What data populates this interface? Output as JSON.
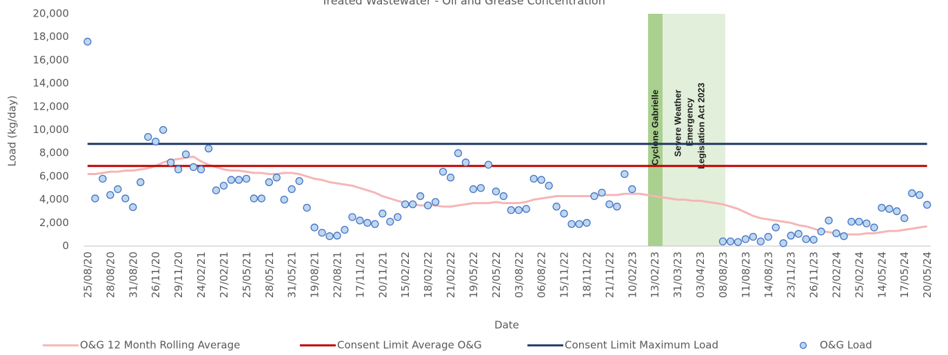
{
  "chart_data": {
    "type": "line",
    "title": "Treated Wastewater - Oil and Grease Concentration",
    "xlabel": "Date",
    "ylabel": "Load (kg/day)",
    "categories": [
      "25/08/20",
      null,
      null,
      "28/08/20",
      null,
      null,
      "31/08/20",
      null,
      null,
      "26/11/20",
      null,
      null,
      "29/11/20",
      null,
      null,
      "24/02/21",
      null,
      null,
      "27/02/21",
      null,
      null,
      "25/05/21",
      null,
      null,
      "28/05/21",
      null,
      null,
      "31/05/21",
      null,
      null,
      "19/08/21",
      null,
      null,
      "22/08/21",
      null,
      null,
      "17/11/21",
      null,
      null,
      "20/11/21",
      null,
      null,
      "15/02/22",
      null,
      null,
      "18/02/22",
      null,
      null,
      "21/02/22",
      null,
      null,
      "19/05/22",
      null,
      null,
      "22/05/22",
      null,
      null,
      "03/08/22",
      null,
      null,
      "06/08/22",
      null,
      null,
      "15/11/22",
      null,
      null,
      "18/11/22",
      null,
      null,
      "21/11/22",
      null,
      null,
      "10/02/23",
      null,
      null,
      "13/02/23",
      null,
      null,
      "31/03/23",
      null,
      null,
      "03/04/23",
      null,
      null,
      "08/08/23",
      null,
      null,
      "11/08/23",
      null,
      null,
      "14/08/23",
      null,
      null,
      "23/11/23",
      null,
      null,
      "26/11/23",
      null,
      null,
      "22/02/24",
      null,
      null,
      "25/02/24",
      null,
      null,
      "14/05/24",
      null,
      null,
      "17/05/24",
      null,
      null,
      "20/05/24"
    ],
    "ylim": [
      0,
      20000
    ],
    "yticks": [
      0,
      {
        "value": 2000,
        "label": "2,000"
      },
      {
        "value": 4000,
        "label": "4,000"
      },
      {
        "value": 6000,
        "label": "6,000"
      },
      {
        "value": 8000,
        "label": "8,000"
      },
      {
        "value": 10000,
        "label": "10,000"
      },
      {
        "value": 12000,
        "label": "12,000"
      },
      {
        "value": 14000,
        "label": "14,000"
      },
      {
        "value": 16000,
        "label": "16,000"
      },
      {
        "value": 18000,
        "label": "18,000"
      },
      {
        "value": 20000,
        "label": "20,000"
      }
    ],
    "grid": false,
    "annotations": [
      "Cyclone Gabrielle",
      "Severe Weather",
      "Emergency",
      "Legislation Act 2023"
    ],
    "series": [
      {
        "name": "O&G 12 Month Rolling Average",
        "color": "#f4b6b6",
        "mode": "line",
        "values": [
          6200,
          6200,
          6300,
          6400,
          6400,
          6500,
          6500,
          6600,
          6700,
          6900,
          7200,
          7400,
          7500,
          7600,
          7700,
          7300,
          7000,
          6800,
          6600,
          6500,
          6500,
          6400,
          6300,
          6300,
          6200,
          6200,
          6300,
          6300,
          6200,
          6000,
          5800,
          5700,
          5500,
          5400,
          5300,
          5200,
          5000,
          4800,
          4600,
          4300,
          4100,
          3900,
          3700,
          3600,
          3500,
          3500,
          3500,
          3400,
          3400,
          3500,
          3600,
          3700,
          3700,
          3700,
          3800,
          3700,
          3700,
          3700,
          3800,
          4000,
          4100,
          4200,
          4300,
          4300,
          4300,
          4300,
          4300,
          4300,
          4400,
          4400,
          4400,
          4500,
          4500,
          4500,
          4400,
          4300,
          4200,
          4100,
          4000,
          4000,
          3900,
          3900,
          3800,
          3700,
          3600,
          3400,
          3200,
          2900,
          2600,
          2400,
          2300,
          2200,
          2100,
          2000,
          1800,
          1700,
          1500,
          1300,
          1200,
          1100,
          1000,
          1000,
          1000,
          1100,
          1100,
          1200,
          1300,
          1300,
          1400,
          1500,
          1600,
          1700
        ]
      },
      {
        "name": "Consent Limit Average O&G",
        "color": "#c00000",
        "mode": "line",
        "values": [
          6900,
          6900,
          6900,
          6900,
          6900,
          6900,
          6900,
          6900,
          6900,
          6900,
          6900,
          6900,
          6900,
          6900,
          6900,
          6900,
          6900,
          6900,
          6900,
          6900,
          6900,
          6900,
          6900,
          6900,
          6900,
          6900,
          6900,
          6900,
          6900,
          6900,
          6900,
          6900,
          6900,
          6900,
          6900,
          6900,
          6900,
          6900,
          6900,
          6900,
          6900,
          6900,
          6900,
          6900,
          6900,
          6900,
          6900,
          6900,
          6900,
          6900,
          6900,
          6900,
          6900,
          6900,
          6900,
          6900,
          6900,
          6900,
          6900,
          6900,
          6900,
          6900,
          6900,
          6900,
          6900,
          6900,
          6900,
          6900,
          6900,
          6900,
          6900,
          6900,
          6900,
          6900,
          6900,
          6900,
          6900,
          6900,
          6900,
          6900,
          6900,
          6900,
          6900,
          6900,
          6900,
          6900,
          6900,
          6900,
          6900,
          6900,
          6900,
          6900,
          6900,
          6900,
          6900,
          6900,
          6900,
          6900,
          6900,
          6900,
          6900,
          6900,
          6900,
          6900,
          6900,
          6900,
          6900,
          6900,
          6900,
          6900,
          6900,
          6900
        ]
      },
      {
        "name": "Consent Limit Maximum Load",
        "color": "#1f3864",
        "mode": "line",
        "values": [
          8800,
          8800,
          8800,
          8800,
          8800,
          8800,
          8800,
          8800,
          8800,
          8800,
          8800,
          8800,
          8800,
          8800,
          8800,
          8800,
          8800,
          8800,
          8800,
          8800,
          8800,
          8800,
          8800,
          8800,
          8800,
          8800,
          8800,
          8800,
          8800,
          8800,
          8800,
          8800,
          8800,
          8800,
          8800,
          8800,
          8800,
          8800,
          8800,
          8800,
          8800,
          8800,
          8800,
          8800,
          8800,
          8800,
          8800,
          8800,
          8800,
          8800,
          8800,
          8800,
          8800,
          8800,
          8800,
          8800,
          8800,
          8800,
          8800,
          8800,
          8800,
          8800,
          8800,
          8800,
          8800,
          8800,
          8800,
          8800,
          8800,
          8800,
          8800,
          8800,
          8800,
          8800,
          8800,
          8800,
          8800,
          8800,
          8800,
          8800,
          8800,
          8800,
          8800,
          8800,
          8800,
          8800,
          8800,
          8800,
          8800,
          8800,
          8800,
          8800,
          8800,
          8800,
          8800,
          8800,
          8800,
          8800,
          8800,
          8800,
          8800,
          8800,
          8800,
          8800,
          8800,
          8800,
          8800,
          8800,
          8800,
          8800,
          8800,
          8800
        ]
      },
      {
        "name": "O&G Load",
        "color": "#4472c4",
        "mode": "markers",
        "values": [
          17600,
          4100,
          5800,
          4400,
          4900,
          4100,
          3350,
          5500,
          9400,
          9000,
          10000,
          7200,
          6600,
          7900,
          6800,
          6600,
          8400,
          4800,
          5200,
          5700,
          5700,
          5800,
          4100,
          4100,
          5500,
          5900,
          4000,
          4900,
          5600,
          3300,
          1600,
          1150,
          850,
          900,
          1400,
          2500,
          2200,
          2000,
          1900,
          2800,
          2100,
          2500,
          3600,
          3600,
          4300,
          3500,
          3800,
          6400,
          5900,
          8000,
          7200,
          4900,
          5000,
          7000,
          4700,
          4300,
          3100,
          3100,
          3200,
          5800,
          5700,
          5200,
          3400,
          2800,
          1900,
          1900,
          2000,
          4300,
          4600,
          3600,
          3400,
          6200,
          4900,
          null,
          null,
          null,
          null,
          null,
          null,
          null,
          null,
          null,
          null,
          null,
          400,
          400,
          350,
          600,
          800,
          400,
          800,
          1600,
          250,
          900,
          1050,
          600,
          550,
          1250,
          2200,
          1100,
          850,
          2100,
          2100,
          1950,
          1600,
          3300,
          3200,
          3000,
          2400,
          4550,
          4400,
          3550
        ]
      }
    ]
  }
}
